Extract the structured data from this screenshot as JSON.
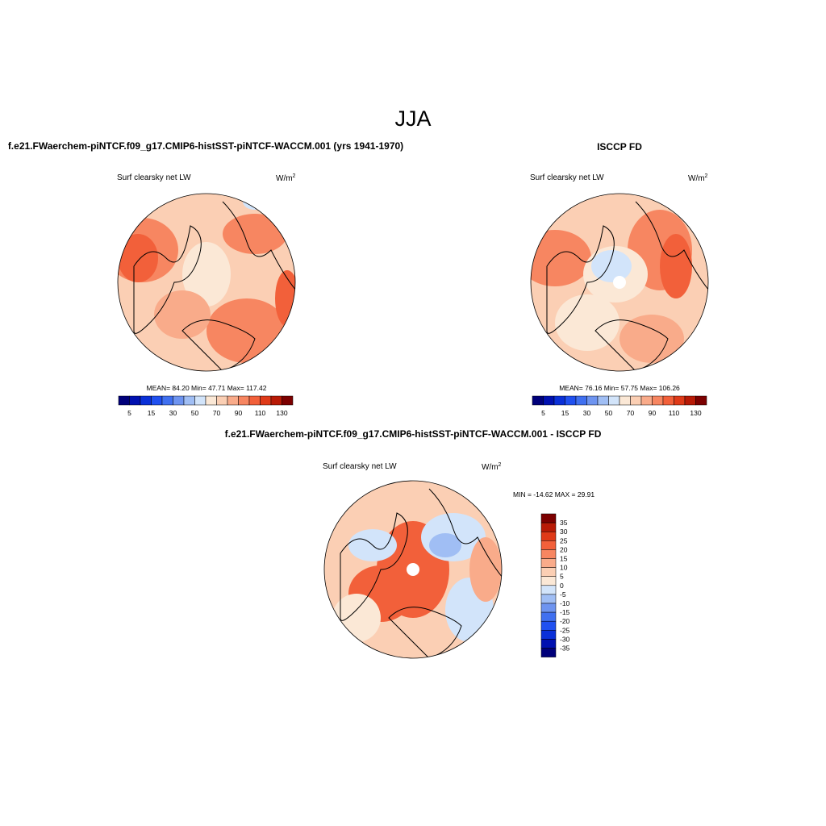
{
  "title": "JJA",
  "panels": [
    {
      "title": "f.e21.FWaerchem-piNTCF.f09_g17.CMIP6-histSST-piNTCF-WACCM.001 (yrs 1941-1970)",
      "variable": "Surf clearsky net LW",
      "units": "W/m",
      "units_exp": "2",
      "stats": "MEAN=  84.20  Min=  47.71  Max= 117.42",
      "colorbar": {
        "labels": [
          5,
          15,
          30,
          50,
          70,
          90,
          110,
          130
        ],
        "colors": [
          "#00007a",
          "#0010b0",
          "#0a30d8",
          "#2050f0",
          "#4070f0",
          "#6e94f0",
          "#a0bef4",
          "#d2e4fa",
          "#fbe8d6",
          "#fbcfb4",
          "#f9ab8a",
          "#f78661",
          "#f2603a",
          "#df3a18",
          "#b81a06",
          "#7c0000"
        ]
      }
    },
    {
      "title": "ISCCP FD",
      "variable": "Surf clearsky net LW",
      "units": "W/m",
      "units_exp": "2",
      "stats": "MEAN=  76.16  Min=  57.75  Max= 106.26",
      "colorbar": {
        "labels": [
          5,
          15,
          30,
          50,
          70,
          90,
          110,
          130
        ],
        "colors": [
          "#00007a",
          "#0010b0",
          "#0a30d8",
          "#2050f0",
          "#4070f0",
          "#6e94f0",
          "#a0bef4",
          "#d2e4fa",
          "#fbe8d6",
          "#fbcfb4",
          "#f9ab8a",
          "#f78661",
          "#f2603a",
          "#df3a18",
          "#b81a06",
          "#7c0000"
        ]
      }
    },
    {
      "title": "f.e21.FWaerchem-piNTCF.f09_g17.CMIP6-histSST-piNTCF-WACCM.001 - ISCCP FD",
      "variable": "Surf clearsky net LW",
      "units": "W/m",
      "units_exp": "2",
      "stats": "MIN = -14.62 MAX =  29.91",
      "colorbar": {
        "labels": [
          35,
          30,
          25,
          20,
          15,
          10,
          5,
          0,
          -5,
          -10,
          -15,
          -20,
          -25,
          -30,
          -35
        ],
        "colors": [
          "#7c0000",
          "#b81a06",
          "#df3a18",
          "#f2603a",
          "#f78661",
          "#f9ab8a",
          "#fbcfb4",
          "#fbe8d6",
          "#d2e4fa",
          "#a0bef4",
          "#6e94f0",
          "#4070f0",
          "#2050f0",
          "#0a30d8",
          "#0010b0",
          "#00007a"
        ]
      }
    }
  ]
}
